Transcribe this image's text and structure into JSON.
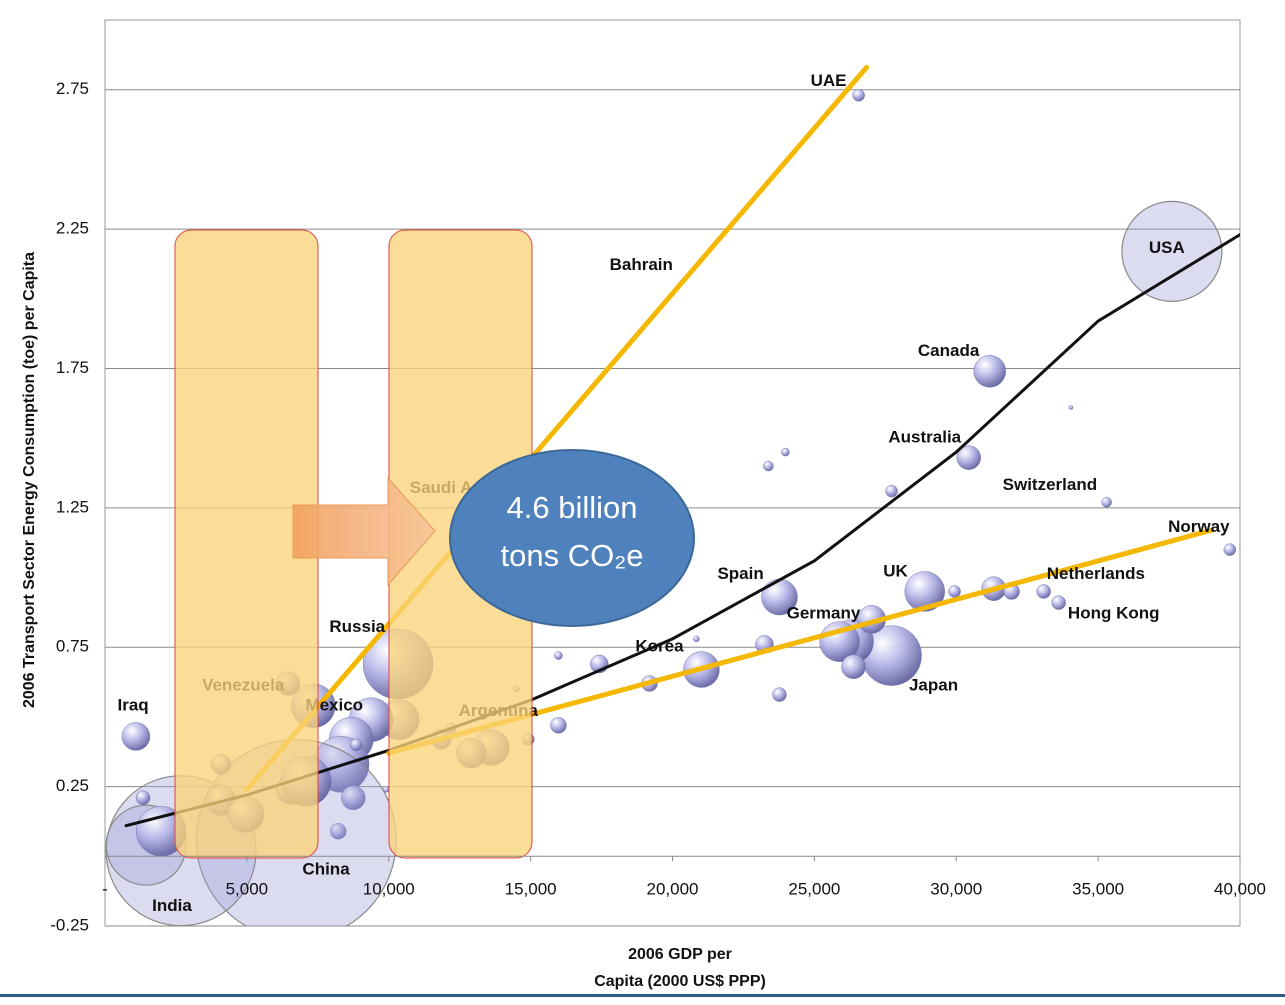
{
  "chart_data": {
    "type": "bubble",
    "color": "#9c9cd8",
    "grid": true,
    "xlim": [
      0,
      40000
    ],
    "ylim": [
      -0.25,
      3.0
    ],
    "xticks": [
      {
        "value": 0,
        "label": "-"
      },
      {
        "value": 5000,
        "label": "5,000"
      },
      {
        "value": 10000,
        "label": "10,000"
      },
      {
        "value": 15000,
        "label": "15,000"
      },
      {
        "value": 20000,
        "label": "20,000"
      },
      {
        "value": 25000,
        "label": "25,000"
      },
      {
        "value": 30000,
        "label": "30,000"
      },
      {
        "value": 35000,
        "label": "35,000"
      },
      {
        "value": 40000,
        "label": "40,000"
      }
    ],
    "yticks": [
      -0.25,
      0.25,
      0.75,
      1.25,
      1.75,
      2.25,
      2.75
    ],
    "x_label": [
      "2006 GDP per",
      "Capita (2000 US$ PPP)"
    ],
    "y_label": "2006 Transport Sector Energy Consumption  (toe) per Capita",
    "x": [
      37600,
      26560,
      31180,
      30440,
      35300,
      39640,
      31320,
      31950,
      33610,
      33080,
      28890,
      29940,
      27720,
      26310,
      25890,
      27020,
      26380,
      23770,
      21020,
      23240,
      23770,
      17420,
      19190,
      15980,
      15980,
      20840,
      23380,
      23980,
      27720,
      34040,
      10330,
      10370,
      9380,
      8680,
      7340,
      8320,
      8750,
      8220,
      8850,
      1090,
      6740,
      2680,
      1450,
      1980,
      1340,
      4090,
      4970,
      6560,
      7090,
      4090,
      6450,
      13610,
      12910,
      11850,
      14920,
      14500,
      12200,
      9910
    ],
    "y": [
      2.17,
      2.73,
      1.74,
      1.43,
      1.27,
      1.1,
      0.96,
      0.95,
      0.91,
      0.95,
      0.95,
      0.95,
      0.72,
      0.77,
      0.77,
      0.85,
      0.68,
      0.93,
      0.67,
      0.76,
      0.58,
      0.69,
      0.62,
      0.47,
      0.72,
      0.78,
      1.4,
      1.45,
      1.31,
      1.61,
      0.69,
      0.49,
      0.49,
      0.42,
      0.54,
      0.33,
      0.21,
      0.09,
      0.4,
      0.43,
      0.06,
      0.02,
      0.04,
      0.09,
      0.21,
      0.2,
      0.15,
      0.24,
      0.27,
      0.33,
      0.62,
      0.39,
      0.37,
      0.42,
      0.42,
      0.6,
      0.46,
      0.24
    ],
    "sizes": [
      50,
      6,
      16,
      12,
      5,
      6,
      12,
      8,
      7,
      7,
      20,
      6,
      30,
      22,
      20,
      14,
      12,
      18,
      18,
      9,
      7,
      9,
      8,
      8,
      4,
      3,
      5,
      4,
      6,
      2,
      35,
      20,
      22,
      22,
      22,
      28,
      12,
      8,
      6,
      14,
      100,
      75,
      40,
      25,
      7,
      15,
      18,
      15,
      25,
      10,
      12,
      18,
      15,
      10,
      6,
      3,
      5,
      3
    ],
    "annotations": [
      {
        "text": "UAE",
        "x": 25500,
        "y": 2.78
      },
      {
        "text": "Bahrain",
        "x": 18900,
        "y": 2.12
      },
      {
        "text": "USA",
        "x": 37420,
        "y": 2.18
      },
      {
        "text": "Canada",
        "x": 29730,
        "y": 1.81
      },
      {
        "text": "Australia",
        "x": 28890,
        "y": 1.5
      },
      {
        "text": "Switzerland",
        "x": 33300,
        "y": 1.33
      },
      {
        "text": "Norway",
        "x": 38550,
        "y": 1.18
      },
      {
        "text": "Netherlands",
        "x": 34920,
        "y": 1.01
      },
      {
        "text": "Hong Kong",
        "x": 35550,
        "y": 0.87
      },
      {
        "text": "UK",
        "x": 27860,
        "y": 1.02
      },
      {
        "text": "Japan",
        "x": 29200,
        "y": 0.61
      },
      {
        "text": "Germany",
        "x": 25320,
        "y": 0.87
      },
      {
        "text": "Spain",
        "x": 22400,
        "y": 1.01
      },
      {
        "text": "Korea",
        "x": 19540,
        "y": 0.75
      },
      {
        "text": "Russia",
        "x": 8890,
        "y": 0.82
      },
      {
        "text": "Mexico",
        "x": 8080,
        "y": 0.54
      },
      {
        "text": "Iraq",
        "x": 990,
        "y": 0.54
      },
      {
        "text": "China",
        "x": 7790,
        "y": -0.05
      },
      {
        "text": "India",
        "x": 2360,
        "y": -0.18
      },
      {
        "text": "Venezuela",
        "x": 4870,
        "y": 0.61
      },
      {
        "text": "Argentina",
        "x": 13860,
        "y": 0.52
      },
      {
        "text": "Saudi Arabia",
        "x": 12560,
        "y": 1.32
      }
    ],
    "trend_lines": [
      {
        "color": "#111111",
        "x": [
          741,
          5000,
          10000,
          15000,
          20000,
          25000,
          30000,
          35000,
          40000
        ],
        "y": [
          0.11,
          0.22,
          0.38,
          0.56,
          0.78,
          1.06,
          1.45,
          1.92,
          2.23
        ]
      },
      {
        "color": "#f5b800",
        "x": [
          5000,
          26840
        ],
        "y": [
          0.24,
          2.83
        ]
      },
      {
        "color": "#f5b800",
        "x": [
          10000,
          39000
        ],
        "y": [
          0.37,
          1.17
        ]
      }
    ],
    "callout": [
      "4.6 billion",
      "tons CO₂e"
    ]
  }
}
